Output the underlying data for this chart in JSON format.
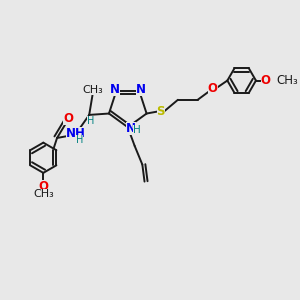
{
  "bg_color": "#e8e8e8",
  "bond_color": "#1a1a1a",
  "N_color": "#0000ee",
  "O_color": "#ee0000",
  "S_color": "#bbbb00",
  "H_color": "#008080",
  "C_color": "#1a1a1a",
  "font_size": 8.5,
  "fig_size": [
    3.0,
    3.0
  ],
  "xlim": [
    0,
    10
  ],
  "ylim": [
    0,
    10
  ]
}
